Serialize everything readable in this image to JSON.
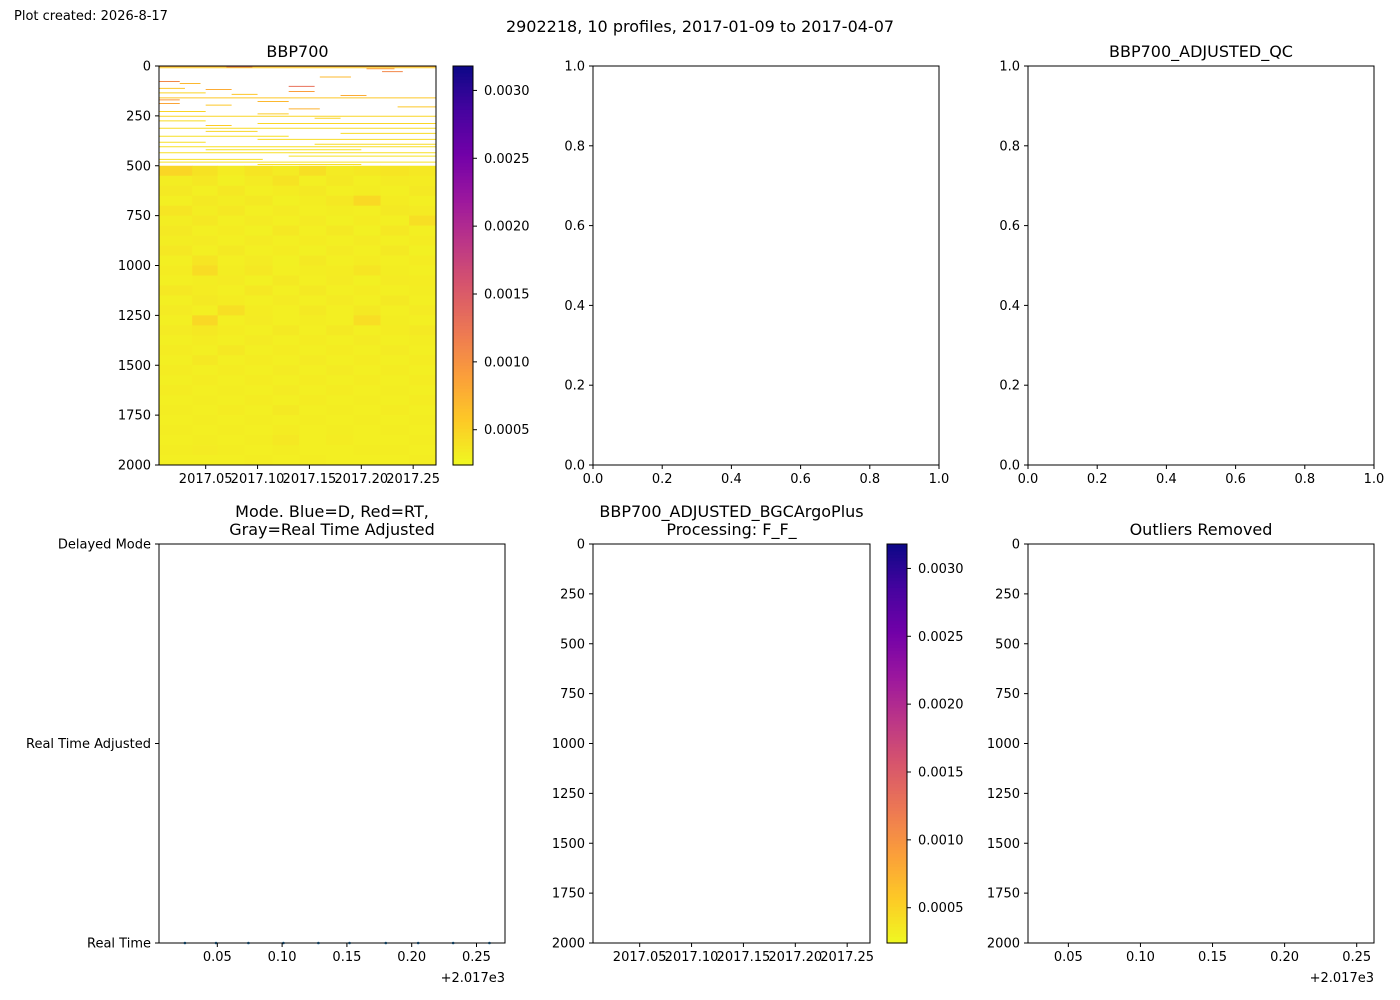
{
  "plot_created": "Plot created: 2026-8-17",
  "suptitle": "2902218, 10 profiles, 2017-01-09 to 2017-04-07",
  "colors": {
    "colormap": "plasma_r",
    "cmap_stops": [
      "#f0f921",
      "#fdca26",
      "#fb9f3a",
      "#ed7953",
      "#d8576b",
      "#bd3786",
      "#9c179e",
      "#7201a8",
      "#46039f",
      "#0d0887"
    ],
    "mode_marker": "#1f77b4"
  },
  "chart_data": [
    {
      "id": "bbp700",
      "type": "heatmap",
      "title": "BBP700",
      "xlim": [
        2017.005,
        2017.272
      ],
      "ylim": [
        2000,
        0
      ],
      "y_inverted": true,
      "xticks": [
        2017.05,
        2017.1,
        2017.15,
        2017.2,
        2017.25
      ],
      "xtick_labels": [
        "2017.05",
        "2017.10",
        "2017.15",
        "2017.20",
        "2017.25"
      ],
      "yticks": [
        0,
        250,
        500,
        750,
        1000,
        1250,
        1500,
        1750,
        2000
      ],
      "ytick_labels": [
        "0",
        "250",
        "500",
        "750",
        "1000",
        "1250",
        "1500",
        "1750",
        "2000"
      ],
      "colorbar": {
        "vmin": 0.00024,
        "vmax": 0.00318,
        "ticks": [
          0.0005,
          0.001,
          0.0015,
          0.002,
          0.0025,
          0.003
        ],
        "tick_labels": [
          "0.0005",
          "0.0010",
          "0.0015",
          "0.0020",
          "0.0025",
          "0.0030"
        ]
      },
      "profile_times": [
        2017.025,
        2017.049,
        2017.074,
        2017.101,
        2017.128,
        2017.152,
        2017.18,
        2017.205,
        2017.232,
        2017.26
      ],
      "deep_bin_depths": [
        500,
        550,
        600,
        650,
        700,
        750,
        800,
        850,
        900,
        950,
        1000,
        1050,
        1100,
        1150,
        1200,
        1250,
        1300,
        1350,
        1400,
        1450,
        1500,
        1550,
        1600,
        1650,
        1700,
        1750,
        1800,
        1850,
        1900,
        1950
      ],
      "deep_bin_size": 50,
      "deep_values": [
        [
          0.00048,
          0.0004,
          0.00033,
          0.00038,
          0.00034,
          0.00042,
          0.00034,
          0.00036,
          0.00038,
          0.00036
        ],
        [
          0.00032,
          0.00036,
          0.0003,
          0.00034,
          0.00039,
          0.00031,
          0.00035,
          0.00031,
          0.00034,
          0.00033
        ],
        [
          0.00035,
          0.00031,
          0.00036,
          0.00031,
          0.00033,
          0.00035,
          0.00031,
          0.00032,
          0.00031,
          0.00035
        ],
        [
          0.00031,
          0.00035,
          0.00032,
          0.00035,
          0.0003,
          0.00032,
          0.00036,
          0.00046,
          0.00033,
          0.00031
        ],
        [
          0.00038,
          0.00032,
          0.00036,
          0.00031,
          0.00034,
          0.00031,
          0.00032,
          0.00031,
          0.00035,
          0.00034
        ],
        [
          0.00032,
          0.00036,
          0.00031,
          0.00034,
          0.00031,
          0.00034,
          0.0003,
          0.00033,
          0.00031,
          0.00042
        ],
        [
          0.00035,
          0.00031,
          0.00033,
          0.0003,
          0.00036,
          0.00031,
          0.00035,
          0.0003,
          0.00036,
          0.00031
        ],
        [
          0.00032,
          0.00034,
          0.00031,
          0.00034,
          0.00031,
          0.00033,
          0.00031,
          0.00034,
          0.00031,
          0.00033
        ],
        [
          0.00036,
          0.00031,
          0.00035,
          0.00031,
          0.00033,
          0.0003,
          0.00034,
          0.00031,
          0.00035,
          0.0003
        ],
        [
          0.00031,
          0.00038,
          0.00031,
          0.00034,
          0.0003,
          0.00035,
          0.00031,
          0.00033,
          0.00031,
          0.00033
        ],
        [
          0.00033,
          0.00044,
          0.00032,
          0.00036,
          0.00031,
          0.00032,
          0.00033,
          0.00038,
          0.00032,
          0.00031
        ],
        [
          0.00031,
          0.00032,
          0.00034,
          0.0003,
          0.00035,
          0.00031,
          0.00034,
          0.0003,
          0.00034,
          0.00033
        ],
        [
          0.00036,
          0.00033,
          0.00031,
          0.00036,
          0.00031,
          0.00035,
          0.00031,
          0.00033,
          0.00031,
          0.00032
        ],
        [
          0.00031,
          0.00035,
          0.00033,
          0.00031,
          0.00034,
          0.00031,
          0.00034,
          0.00031,
          0.00035,
          0.00031
        ],
        [
          0.00034,
          0.00031,
          0.00042,
          0.00033,
          0.00031,
          0.00035,
          0.00031,
          0.00035,
          0.00031,
          0.00034
        ],
        [
          0.00031,
          0.00047,
          0.00031,
          0.00034,
          0.00031,
          0.00032,
          0.00031,
          0.00043,
          0.00032,
          0.00031
        ],
        [
          0.00034,
          0.00036,
          0.00033,
          0.00031,
          0.00035,
          0.00031,
          0.00035,
          0.00031,
          0.00033,
          0.00035
        ],
        [
          0.00031,
          0.00033,
          0.00031,
          0.00034,
          0.00031,
          0.00033,
          0.00031,
          0.00034,
          0.00031,
          0.00032
        ],
        [
          0.00033,
          0.00031,
          0.00036,
          0.00031,
          0.00033,
          0.00031,
          0.00033,
          0.00031,
          0.00034,
          0.00031
        ],
        [
          0.00031,
          0.00036,
          0.00031,
          0.00033,
          0.00031,
          0.00034,
          0.00031,
          0.00033,
          0.00031,
          0.00033
        ],
        [
          0.00033,
          0.00031,
          0.00033,
          0.00031,
          0.00034,
          0.00031,
          0.00034,
          0.00031,
          0.00033,
          0.00031
        ],
        [
          0.00031,
          0.00033,
          0.00031,
          0.00033,
          0.00031,
          0.00033,
          0.00031,
          0.00033,
          0.00031,
          0.00033
        ],
        [
          0.00033,
          0.00031,
          0.00032,
          0.00031,
          0.00034,
          0.00031,
          0.00033,
          0.00031,
          0.00032,
          0.00031
        ],
        [
          0.00031,
          0.00032,
          0.00031,
          0.00033,
          0.00031,
          0.00033,
          0.00031,
          0.00032,
          0.00031,
          0.00033
        ],
        [
          0.00032,
          0.00031,
          0.00033,
          0.00031,
          0.00035,
          0.00031,
          0.00032,
          0.00031,
          0.00033,
          0.00031
        ],
        [
          0.00031,
          0.00032,
          0.00031,
          0.00032,
          0.00031,
          0.00032,
          0.00031,
          0.00032,
          0.00031,
          0.00032
        ],
        [
          0.00032,
          0.00031,
          0.00032,
          0.00031,
          0.00033,
          0.00031,
          0.00032,
          0.00031,
          0.00032,
          0.00031
        ],
        [
          0.00031,
          0.00032,
          0.00031,
          0.00032,
          0.00036,
          0.00031,
          0.00033,
          0.00031,
          0.00031,
          0.00032
        ],
        [
          0.00032,
          0.00034,
          0.00032,
          0.00031,
          0.00032,
          0.00031,
          0.00031,
          0.00032,
          0.00032,
          0.00031
        ],
        [
          0.00031,
          0.00031,
          0.00031,
          0.00032,
          0.00031,
          0.00032,
          0.00031,
          0.00031,
          0.00031,
          0.00032
        ]
      ],
      "shallow_lines": [
        {
          "depth": 3,
          "x0": 2017.005,
          "x1": 2017.272,
          "value": 0.0008
        },
        {
          "depth": 6,
          "x0": 2017.07,
          "x1": 2017.095,
          "value": 0.0017
        },
        {
          "depth": 9,
          "x0": 2017.005,
          "x1": 2017.272,
          "value": 0.00055
        },
        {
          "depth": 14,
          "x0": 2017.205,
          "x1": 2017.232,
          "value": 0.0009
        },
        {
          "depth": 28,
          "x0": 2017.22,
          "x1": 2017.24,
          "value": 0.0011
        },
        {
          "depth": 55,
          "x0": 2017.16,
          "x1": 2017.19,
          "value": 0.0007
        },
        {
          "depth": 78,
          "x0": 2017.005,
          "x1": 2017.025,
          "value": 0.0011
        },
        {
          "depth": 88,
          "x0": 2017.025,
          "x1": 2017.045,
          "value": 0.0007
        },
        {
          "depth": 102,
          "x0": 2017.13,
          "x1": 2017.155,
          "value": 0.0013
        },
        {
          "depth": 112,
          "x0": 2017.005,
          "x1": 2017.03,
          "value": 0.0006
        },
        {
          "depth": 118,
          "x0": 2017.05,
          "x1": 2017.075,
          "value": 0.0008
        },
        {
          "depth": 128,
          "x0": 2017.13,
          "x1": 2017.155,
          "value": 0.0009
        },
        {
          "depth": 135,
          "x0": 2017.005,
          "x1": 2017.05,
          "value": 0.0005
        },
        {
          "depth": 142,
          "x0": 2017.075,
          "x1": 2017.1,
          "value": 0.0006
        },
        {
          "depth": 148,
          "x0": 2017.18,
          "x1": 2017.205,
          "value": 0.0008
        },
        {
          "depth": 160,
          "x0": 2017.005,
          "x1": 2017.272,
          "value": 0.0006
        },
        {
          "depth": 170,
          "x0": 2017.005,
          "x1": 2017.025,
          "value": 0.00095
        },
        {
          "depth": 178,
          "x0": 2017.1,
          "x1": 2017.13,
          "value": 0.0007
        },
        {
          "depth": 188,
          "x0": 2017.005,
          "x1": 2017.025,
          "value": 0.00085
        },
        {
          "depth": 196,
          "x0": 2017.05,
          "x1": 2017.075,
          "value": 0.0006
        },
        {
          "depth": 205,
          "x0": 2017.235,
          "x1": 2017.272,
          "value": 0.0006
        },
        {
          "depth": 215,
          "x0": 2017.13,
          "x1": 2017.16,
          "value": 0.00075
        },
        {
          "depth": 228,
          "x0": 2017.005,
          "x1": 2017.05,
          "value": 0.0005
        },
        {
          "depth": 240,
          "x0": 2017.1,
          "x1": 2017.13,
          "value": 0.00055
        },
        {
          "depth": 252,
          "x0": 2017.005,
          "x1": 2017.272,
          "value": 0.00048
        },
        {
          "depth": 262,
          "x0": 2017.155,
          "x1": 2017.18,
          "value": 0.0005
        },
        {
          "depth": 275,
          "x0": 2017.005,
          "x1": 2017.05,
          "value": 0.00045
        },
        {
          "depth": 288,
          "x0": 2017.1,
          "x1": 2017.272,
          "value": 0.00048
        },
        {
          "depth": 298,
          "x0": 2017.05,
          "x1": 2017.075,
          "value": 0.00055
        },
        {
          "depth": 312,
          "x0": 2017.005,
          "x1": 2017.272,
          "value": 0.00045
        },
        {
          "depth": 328,
          "x0": 2017.05,
          "x1": 2017.1,
          "value": 0.00048
        },
        {
          "depth": 338,
          "x0": 2017.18,
          "x1": 2017.272,
          "value": 0.00045
        },
        {
          "depth": 352,
          "x0": 2017.005,
          "x1": 2017.13,
          "value": 0.00042
        },
        {
          "depth": 368,
          "x0": 2017.1,
          "x1": 2017.272,
          "value": 0.00045
        },
        {
          "depth": 382,
          "x0": 2017.005,
          "x1": 2017.05,
          "value": 0.00042
        },
        {
          "depth": 392,
          "x0": 2017.155,
          "x1": 2017.272,
          "value": 0.00045
        },
        {
          "depth": 405,
          "x0": 2017.005,
          "x1": 2017.272,
          "value": 0.00042
        },
        {
          "depth": 420,
          "x0": 2017.05,
          "x1": 2017.2,
          "value": 0.0004
        },
        {
          "depth": 435,
          "x0": 2017.005,
          "x1": 2017.272,
          "value": 0.00042
        },
        {
          "depth": 452,
          "x0": 2017.13,
          "x1": 2017.272,
          "value": 0.0004
        },
        {
          "depth": 468,
          "x0": 2017.005,
          "x1": 2017.105,
          "value": 0.00042
        },
        {
          "depth": 482,
          "x0": 2017.005,
          "x1": 2017.272,
          "value": 0.0004
        },
        {
          "depth": 494,
          "x0": 2017.1,
          "x1": 2017.2,
          "value": 0.00042
        }
      ]
    },
    {
      "id": "empty_top_middle",
      "type": "scatter",
      "title": "",
      "xlim": [
        0,
        1
      ],
      "ylim": [
        0,
        1
      ],
      "xticks": [
        0,
        0.2,
        0.4,
        0.6,
        0.8,
        1.0
      ],
      "xtick_labels": [
        "0.0",
        "0.2",
        "0.4",
        "0.6",
        "0.8",
        "1.0"
      ],
      "yticks": [
        0,
        0.2,
        0.4,
        0.6,
        0.8,
        1.0
      ],
      "ytick_labels": [
        "0.0",
        "0.2",
        "0.4",
        "0.6",
        "0.8",
        "1.0"
      ]
    },
    {
      "id": "bbp700_adjusted_qc",
      "type": "scatter",
      "title": "BBP700_ADJUSTED_QC",
      "xlim": [
        0,
        1
      ],
      "ylim": [
        0,
        1
      ],
      "xticks": [
        0,
        0.2,
        0.4,
        0.6,
        0.8,
        1.0
      ],
      "xtick_labels": [
        "0.0",
        "0.2",
        "0.4",
        "0.6",
        "0.8",
        "1.0"
      ],
      "yticks": [
        0,
        0.2,
        0.4,
        0.6,
        0.8,
        1.0
      ],
      "ytick_labels": [
        "0.0",
        "0.2",
        "0.4",
        "0.6",
        "0.8",
        "1.0"
      ]
    },
    {
      "id": "mode",
      "type": "scatter",
      "title_lines": [
        "Mode. Blue=D, Red=RT,",
        "Gray=Real Time Adjusted"
      ],
      "xlim": [
        2017.005,
        2017.272
      ],
      "ylim": [
        0,
        2
      ],
      "xticks": [
        2017.05,
        2017.1,
        2017.15,
        2017.2,
        2017.25
      ],
      "xtick_labels": [
        "0.05",
        "0.10",
        "0.15",
        "0.20",
        "0.25"
      ],
      "x_offset_label": "+2.017e3",
      "yticks": [
        0,
        1,
        2
      ],
      "ytick_labels": [
        "Real Time",
        "Real Time Adjusted",
        "Delayed Mode"
      ],
      "points": {
        "x": [
          2017.025,
          2017.049,
          2017.074,
          2017.101,
          2017.128,
          2017.152,
          2017.18,
          2017.205,
          2017.232,
          2017.26
        ],
        "y": [
          0,
          0,
          0,
          0,
          0,
          0,
          0,
          0,
          0,
          0
        ]
      }
    },
    {
      "id": "bgcargoplus",
      "type": "heatmap",
      "title_lines": [
        "BBP700_ADJUSTED_BGCArgoPlus",
        "Processing: F_F_"
      ],
      "xlim": [
        2017.005,
        2017.272
      ],
      "ylim": [
        2000,
        0
      ],
      "y_inverted": true,
      "xticks": [
        2017.05,
        2017.1,
        2017.15,
        2017.2,
        2017.25
      ],
      "xtick_labels": [
        "2017.05",
        "2017.10",
        "2017.15",
        "2017.20",
        "2017.25"
      ],
      "yticks": [
        0,
        250,
        500,
        750,
        1000,
        1250,
        1500,
        1750,
        2000
      ],
      "ytick_labels": [
        "0",
        "250",
        "500",
        "750",
        "1000",
        "1250",
        "1500",
        "1750",
        "2000"
      ],
      "colorbar": {
        "vmin": 0.00024,
        "vmax": 0.00318,
        "ticks": [
          0.0005,
          0.001,
          0.0015,
          0.002,
          0.0025,
          0.003
        ],
        "tick_labels": [
          "0.0005",
          "0.0010",
          "0.0015",
          "0.0020",
          "0.0025",
          "0.0030"
        ]
      }
    },
    {
      "id": "outliers",
      "type": "scatter",
      "title": "Outliers Removed",
      "xlim": [
        2017.022,
        2017.262
      ],
      "ylim": [
        2000,
        0
      ],
      "y_inverted": true,
      "xticks": [
        2017.05,
        2017.1,
        2017.15,
        2017.2,
        2017.25
      ],
      "xtick_labels": [
        "0.05",
        "0.10",
        "0.15",
        "0.20",
        "0.25"
      ],
      "x_offset_label": "+2.017e3",
      "yticks": [
        0,
        250,
        500,
        750,
        1000,
        1250,
        1500,
        1750,
        2000
      ],
      "ytick_labels": [
        "0",
        "250",
        "500",
        "750",
        "1000",
        "1250",
        "1500",
        "1750",
        "2000"
      ]
    }
  ]
}
